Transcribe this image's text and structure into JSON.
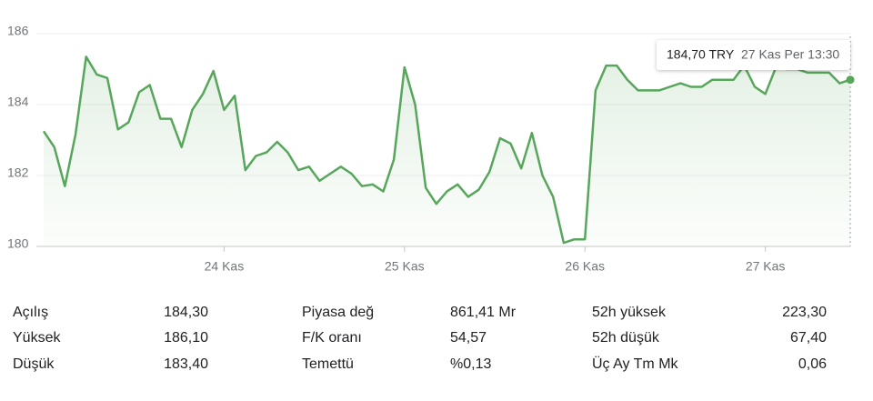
{
  "chart_data": {
    "type": "line",
    "color": "#58a65c",
    "ylim": [
      180,
      186
    ],
    "yticks": [
      180,
      182,
      184,
      186
    ],
    "grid": true,
    "categories": [
      null,
      null,
      null,
      null,
      null,
      null,
      null,
      null,
      null,
      null,
      null,
      null,
      null,
      null,
      null,
      null,
      null,
      "24 Kas",
      null,
      null,
      null,
      null,
      null,
      null,
      null,
      null,
      null,
      null,
      null,
      null,
      null,
      null,
      null,
      null,
      "25 Kas",
      null,
      null,
      null,
      null,
      null,
      null,
      null,
      null,
      null,
      null,
      null,
      null,
      null,
      null,
      null,
      null,
      "26 Kas",
      null,
      null,
      null,
      null,
      null,
      null,
      null,
      null,
      null,
      null,
      null,
      null,
      null,
      null,
      null,
      null,
      "27 Kas",
      null,
      null,
      null,
      null,
      null,
      null,
      null,
      null
    ],
    "values": [
      183.25,
      182.8,
      181.7,
      183.15,
      185.35,
      184.85,
      184.75,
      183.3,
      183.5,
      184.35,
      184.55,
      183.6,
      183.6,
      182.8,
      183.85,
      184.3,
      184.95,
      183.85,
      184.25,
      182.15,
      182.55,
      182.65,
      182.95,
      182.65,
      182.15,
      182.25,
      181.85,
      182.05,
      182.25,
      182.05,
      181.7,
      181.75,
      181.55,
      182.45,
      185.05,
      184.0,
      181.65,
      181.2,
      181.55,
      181.75,
      181.4,
      181.6,
      182.1,
      183.05,
      182.9,
      182.2,
      183.2,
      182.0,
      181.4,
      180.1,
      180.2,
      180.2,
      184.4,
      185.1,
      185.1,
      184.7,
      184.4,
      184.4,
      184.4,
      184.5,
      184.6,
      184.5,
      184.5,
      184.7,
      184.7,
      184.7,
      185.1,
      184.5,
      184.3,
      185.05,
      185.0,
      185.0,
      184.9,
      184.9,
      184.9,
      184.6,
      184.7
    ],
    "tooltip": {
      "price": "184,70 TRY",
      "time": "27 Kas Per 13:30"
    }
  },
  "stats": [
    [
      [
        "Açılış",
        "184,30"
      ],
      [
        "Yüksek",
        "186,10"
      ],
      [
        "Düşük",
        "183,40"
      ]
    ],
    [
      [
        "Piyasa değ",
        "861,41 Mr"
      ],
      [
        "F/K oranı",
        "54,57"
      ],
      [
        "Temettü",
        "%0,13"
      ]
    ],
    [
      [
        "52h yüksek",
        "223,30"
      ],
      [
        "52h düşük",
        "67,40"
      ],
      [
        "Üç Ay Tm Mk",
        "0,06"
      ]
    ]
  ]
}
